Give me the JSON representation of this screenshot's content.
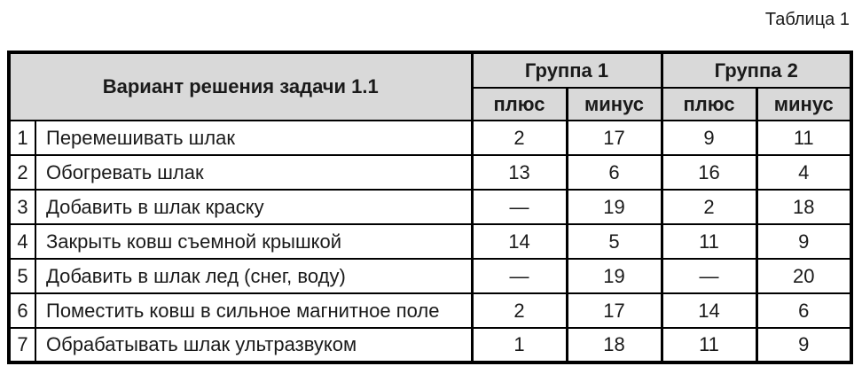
{
  "caption": "Таблица 1",
  "colors": {
    "header_bg": "#d9d9d9",
    "border": "#000000",
    "text": "#1a1a1a"
  },
  "table": {
    "header": {
      "variant": "Вариант решения задачи 1.1",
      "group1": "Группа 1",
      "group2": "Группа 2"
    },
    "subheaders": [
      "плюс",
      "минус",
      "плюс",
      "минус"
    ],
    "rows": [
      {
        "num": "1",
        "label": "Перемешивать шлак",
        "values": [
          "2",
          "17",
          "9",
          "11"
        ]
      },
      {
        "num": "2",
        "label": "Обогревать шлак",
        "values": [
          "13",
          "6",
          "16",
          "4"
        ]
      },
      {
        "num": "3",
        "label": "Добавить в шлак краску",
        "values": [
          "—",
          "19",
          "2",
          "18"
        ]
      },
      {
        "num": "4",
        "label": "Закрыть ковш съемной крышкой",
        "values": [
          "14",
          "5",
          "11",
          "9"
        ]
      },
      {
        "num": "5",
        "label": "Добавить в шлак лед (снег, воду)",
        "values": [
          "—",
          "19",
          "—",
          "20"
        ]
      },
      {
        "num": "6",
        "label": "Поместить ковш в сильное магнитное поле",
        "values": [
          "2",
          "17",
          "14",
          "6"
        ]
      },
      {
        "num": "7",
        "label": "Обрабатывать шлак ультразвуком",
        "values": [
          "1",
          "18",
          "11",
          "9"
        ]
      }
    ]
  }
}
